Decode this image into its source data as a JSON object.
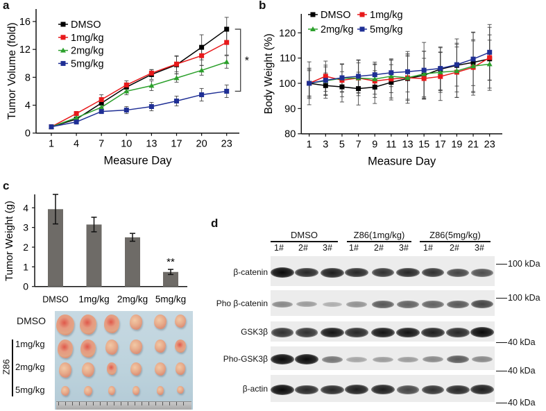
{
  "panels": {
    "a": {
      "letter": "a"
    },
    "b": {
      "letter": "b"
    },
    "c": {
      "letter": "c"
    },
    "d": {
      "letter": "d"
    }
  },
  "chart_data": [
    {
      "id": "a",
      "type": "line",
      "title": "",
      "xlabel": "Measure Day",
      "ylabel": "Tumor Volume (fold)",
      "x": [
        1,
        4,
        7,
        10,
        13,
        17,
        20,
        23
      ],
      "x_tick_labels": [
        "1",
        "4",
        "7",
        "10",
        "13",
        "17",
        "20",
        "23"
      ],
      "ylim": [
        0,
        16
      ],
      "y_ticks": [
        0,
        4,
        8,
        12,
        16
      ],
      "grid": false,
      "legend_position": "top-left",
      "series": [
        {
          "name": "DMSO",
          "color": "#000000",
          "marker": "square",
          "values": [
            0.9,
            2.0,
            4.3,
            6.6,
            8.4,
            9.8,
            12.3,
            14.9
          ],
          "errors": [
            0.1,
            0.3,
            0.6,
            0.6,
            0.7,
            1.3,
            1.8,
            1.7
          ]
        },
        {
          "name": "1mg/kg",
          "color": "#e8191b",
          "marker": "square",
          "values": [
            0.9,
            2.8,
            4.8,
            6.9,
            8.6,
            9.9,
            11.1,
            13.0
          ],
          "errors": [
            0.1,
            0.3,
            0.7,
            0.6,
            0.5,
            1.1,
            1.4,
            1.8
          ]
        },
        {
          "name": "2mg/kg",
          "color": "#2ca02c",
          "marker": "triangle",
          "values": [
            0.9,
            2.2,
            3.7,
            6.0,
            6.8,
            7.9,
            9.0,
            10.2
          ],
          "errors": [
            0.1,
            0.3,
            0.5,
            0.5,
            0.7,
            0.6,
            0.7,
            0.9
          ]
        },
        {
          "name": "5mg/kg",
          "color": "#1f2f95",
          "marker": "square",
          "values": [
            0.9,
            1.6,
            3.1,
            3.3,
            3.8,
            4.6,
            5.5,
            6.0
          ],
          "errors": [
            0.1,
            0.3,
            0.3,
            0.5,
            0.6,
            0.7,
            0.9,
            0.9
          ]
        }
      ],
      "annotations": [
        {
          "text": "*",
          "between": [
            "DMSO",
            "5mg/kg"
          ],
          "at_x": 23
        }
      ]
    },
    {
      "id": "b",
      "type": "line",
      "title": "",
      "xlabel": "Measure Day",
      "ylabel": "Body Weight (%)",
      "x": [
        1,
        3,
        5,
        7,
        9,
        11,
        13,
        15,
        17,
        19,
        21,
        23
      ],
      "x_tick_labels": [
        "1",
        "3",
        "5",
        "7",
        "9",
        "11",
        "13",
        "15",
        "17",
        "19",
        "21",
        "23"
      ],
      "ylim": [
        80,
        125
      ],
      "y_ticks": [
        80,
        90,
        100,
        110,
        120
      ],
      "grid": false,
      "legend_position": "top-left",
      "series": [
        {
          "name": "DMSO",
          "color": "#000000",
          "marker": "square",
          "values": [
            100,
            99.1,
            98.6,
            97.9,
            98.5,
            100.4,
            101.9,
            103.2,
            105.6,
            107.1,
            108.3,
            109.7
          ],
          "errors": [
            8.5,
            5.0,
            6.0,
            6.5,
            6.5,
            7.0,
            9.8,
            9.5,
            8.5,
            10.5,
            12.0,
            12.5
          ]
        },
        {
          "name": "1mg/kg",
          "color": "#e8191b",
          "marker": "square",
          "values": [
            100,
            102.8,
            101.2,
            102.1,
            100.9,
            101.7,
            102.2,
            101.9,
            102.7,
            104.4,
            106.3,
            110.2
          ],
          "errors": [
            5.5,
            6.0,
            6.5,
            7.0,
            6.5,
            7.5,
            9.0,
            8.0,
            9.5,
            10.0,
            11.0,
            9.0
          ]
        },
        {
          "name": "2mg/kg",
          "color": "#2ca02c",
          "marker": "triangle",
          "values": [
            100,
            101.0,
            102.0,
            102.1,
            101.7,
            102.8,
            102.2,
            103.7,
            104.4,
            104.9,
            106.8,
            107.6
          ],
          "errors": [
            6.0,
            5.5,
            5.5,
            6.0,
            6.0,
            6.5,
            8.5,
            9.0,
            8.0,
            10.5,
            10.0,
            9.5
          ]
        },
        {
          "name": "5mg/kg",
          "color": "#1f2f95",
          "marker": "square",
          "values": [
            100,
            101.2,
            102.2,
            102.8,
            103.4,
            104.2,
            104.6,
            105.2,
            105.9,
            107.4,
            109.6,
            112.3
          ],
          "errors": [
            5.0,
            6.0,
            5.5,
            6.5,
            5.0,
            5.5,
            8.0,
            11.0,
            8.5,
            8.5,
            10.5,
            11.0
          ]
        }
      ],
      "legend_layout": "2x2"
    },
    {
      "id": "c",
      "type": "bar",
      "title": "",
      "xlabel": "",
      "ylabel": "Tumor Weight (g)",
      "categories": [
        "DMSO",
        "1mg/kg",
        "2mg/kg",
        "5mg/kg"
      ],
      "values": [
        3.93,
        3.15,
        2.5,
        0.74
      ],
      "errors": [
        0.75,
        0.37,
        0.2,
        0.13
      ],
      "ylim": [
        0,
        4.7
      ],
      "y_ticks": [
        0,
        1,
        2,
        3,
        4
      ],
      "bar_color": "#6e6b67",
      "grid": false,
      "annotations": [
        {
          "text": "**",
          "category": "5mg/kg"
        }
      ]
    }
  ],
  "photo": {
    "row_labels": [
      "DMSO",
      "1mg/kg",
      "2mg/kg",
      "5mg/kg"
    ],
    "group_label": "Z86",
    "tumors_per_row": 6
  },
  "blot": {
    "groups": [
      {
        "label": "DMSO",
        "lanes": [
          "1#",
          "2#",
          "3#"
        ]
      },
      {
        "label": "Z86(1mg/kg)",
        "lanes": [
          "1#",
          "2#",
          "3#"
        ]
      },
      {
        "label": "Z86(5mg/kg)",
        "lanes": [
          "1#",
          "2#",
          "3#"
        ]
      }
    ],
    "rows": [
      {
        "label": "β-catenin",
        "marker": "100 kDa",
        "intensity": [
          1.0,
          0.85,
          0.9,
          0.85,
          0.8,
          0.85,
          0.8,
          0.7,
          0.65
        ]
      },
      {
        "label": "Pho β-catenin",
        "marker": "100 kDa",
        "intensity": [
          0.35,
          0.25,
          0.15,
          0.3,
          0.6,
          0.55,
          0.55,
          0.6,
          0.7
        ]
      },
      {
        "label": "GSK3β",
        "marker": "40 kDa",
        "intensity": [
          0.8,
          0.8,
          0.95,
          0.85,
          0.95,
          0.95,
          0.9,
          0.85,
          1.0
        ]
      },
      {
        "label": "Pho-GSK3β",
        "marker": "40 kDa",
        "intensity": [
          1.0,
          1.0,
          0.45,
          0.2,
          0.25,
          0.25,
          0.35,
          0.6,
          0.35
        ]
      },
      {
        "label": "β-actin",
        "marker": "40 kDa",
        "intensity": [
          1.0,
          0.85,
          0.85,
          0.9,
          0.9,
          0.7,
          0.8,
          0.85,
          0.9
        ]
      }
    ]
  }
}
